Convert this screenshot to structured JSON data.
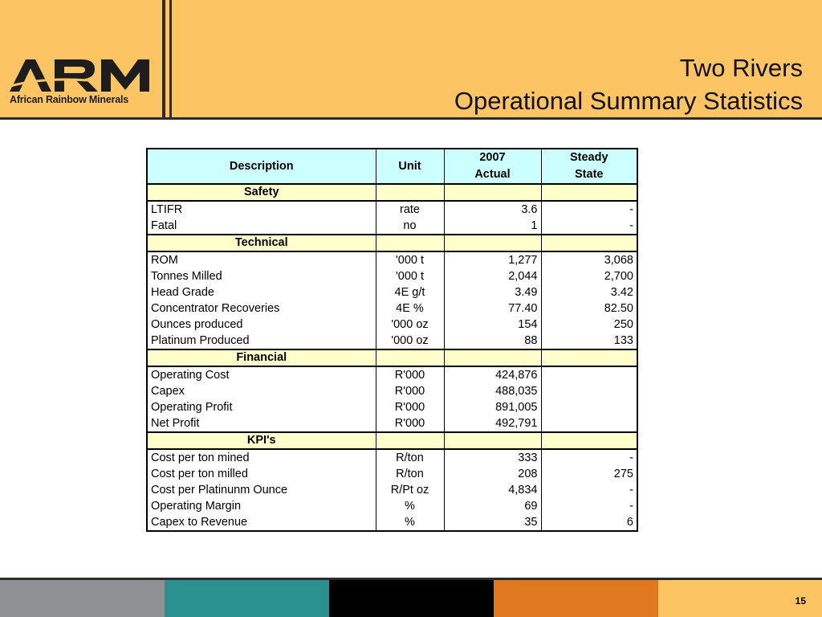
{
  "logo": {
    "mark": "ARM",
    "subtitle": "African Rainbow Minerals"
  },
  "title": {
    "line1": "Two Rivers",
    "line2": "Operational Summary Statistics"
  },
  "table": {
    "headers": {
      "description": "Description",
      "unit": "Unit",
      "col2007_line1": "2007",
      "col2007_line2": "Actual",
      "steady_line1": "Steady",
      "steady_line2": "State"
    },
    "sections": [
      {
        "label": "Safety",
        "rows": [
          {
            "description": "LTIFR",
            "unit": "rate",
            "actual": "3.6",
            "steady": "-"
          },
          {
            "description": "Fatal",
            "unit": "no",
            "actual": "1",
            "steady": "-"
          }
        ]
      },
      {
        "label": "Technical",
        "rows": [
          {
            "description": "ROM",
            "unit": "'000 t",
            "actual": "1,277",
            "steady": "3,068"
          },
          {
            "description": "Tonnes Milled",
            "unit": "'000 t",
            "actual": "2,044",
            "steady": "2,700"
          },
          {
            "description": "Head Grade",
            "unit": "4E g/t",
            "actual": "3.49",
            "steady": "3.42"
          },
          {
            "description": "Concentrator Recoveries",
            "unit": "4E %",
            "actual": "77.40",
            "steady": "82.50"
          },
          {
            "description": "Ounces produced",
            "unit": "'000 oz",
            "actual": "154",
            "steady": "250"
          },
          {
            "description": "Platinum Produced",
            "unit": "'000 oz",
            "actual": "88",
            "steady": "133"
          }
        ]
      },
      {
        "label": "Financial",
        "rows": [
          {
            "description": "Operating Cost",
            "unit": "R'000",
            "actual": "424,876",
            "steady": ""
          },
          {
            "description": "Capex",
            "unit": "R'000",
            "actual": "488,035",
            "steady": ""
          },
          {
            "description": "Operating Profit",
            "unit": "R'000",
            "actual": "891,005",
            "steady": ""
          },
          {
            "description": "Net Profit",
            "unit": "R'000",
            "actual": "492,791",
            "steady": ""
          }
        ]
      },
      {
        "label": "KPI's",
        "rows": [
          {
            "description": "Cost per ton mined",
            "unit": "R/ton",
            "actual": "333",
            "steady": "-"
          },
          {
            "description": "Cost per ton milled",
            "unit": "R/ton",
            "actual": "208",
            "steady": "275"
          },
          {
            "description": "Cost per Platinunm Ounce",
            "unit": "R/Pt oz",
            "actual": "4,834",
            "steady": "-"
          },
          {
            "description": "Operating Margin",
            "unit": "%",
            "actual": "69",
            "steady": "-"
          },
          {
            "description": "Capex to Revenue",
            "unit": "%",
            "actual": "35",
            "steady": "6"
          }
        ]
      }
    ]
  },
  "footer": {
    "page_number": "15",
    "colors": [
      "#8f9094",
      "#2b9090",
      "#000000",
      "#e07820",
      "#fdc464"
    ]
  },
  "colors": {
    "header_bg": "#fdc464",
    "table_header_bg": "#ccffff",
    "section_bg": "#ffffcc"
  }
}
